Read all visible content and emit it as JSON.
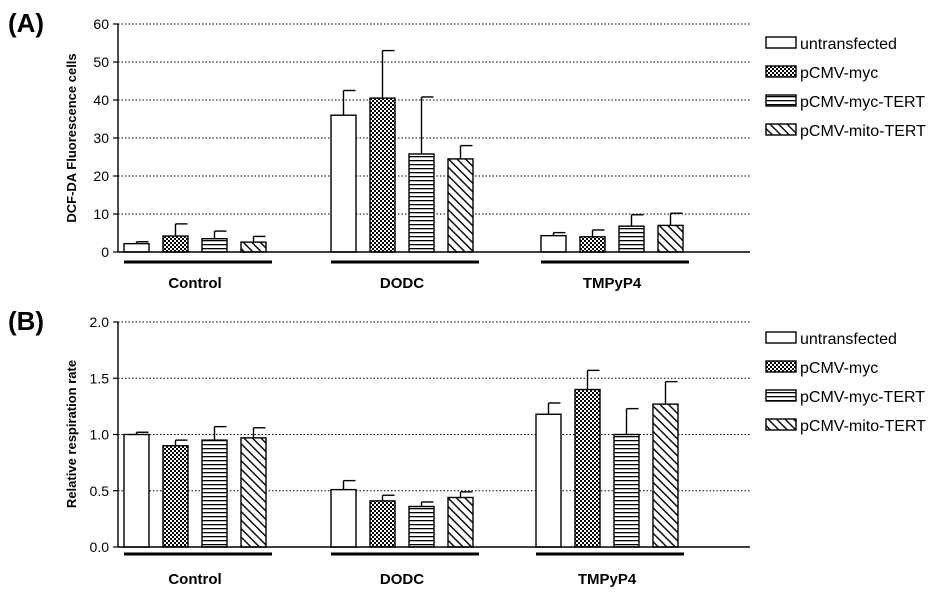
{
  "legend_colors": {
    "stroke": "#000000",
    "fill": "#ffffff"
  },
  "chart_data": [
    {
      "panel": "(A)",
      "type": "bar",
      "ylabel": "DCF-DA Fluorescence cells",
      "ylim": [
        0,
        60
      ],
      "yticks": [
        "0",
        "10",
        "20",
        "30",
        "40",
        "50",
        "60"
      ],
      "grid": "horizontal dotted",
      "legend_placement": "right",
      "categories": [
        "Control",
        "DODC",
        "TMPyP4"
      ],
      "series": [
        {
          "name": "untransfected",
          "pattern": "none",
          "values": [
            2.2,
            36,
            4.3
          ],
          "errors": [
            0.5,
            6.5,
            0.8
          ]
        },
        {
          "name": "pCMV-myc",
          "pattern": "dense-check",
          "values": [
            4.2,
            40.5,
            4.0
          ],
          "errors": [
            3.2,
            12.5,
            1.8
          ]
        },
        {
          "name": "pCMV-myc-TERT",
          "pattern": "horizontal-lines",
          "values": [
            3.5,
            25.8,
            6.8
          ],
          "errors": [
            2.0,
            15.0,
            3.0
          ]
        },
        {
          "name": "pCMV-mito-TERT",
          "pattern": "diagonal-lines",
          "values": [
            2.6,
            24.5,
            7.0
          ],
          "errors": [
            1.5,
            3.5,
            3.2
          ]
        }
      ]
    },
    {
      "panel": "(B)",
      "type": "bar",
      "ylabel": "Relative respiration rate",
      "ylim": [
        0,
        2.0
      ],
      "yticks": [
        "0.0",
        "0.5",
        "1.0",
        "1.5",
        "2.0"
      ],
      "grid": "horizontal dotted",
      "legend_placement": "right",
      "categories": [
        "Control",
        "DODC",
        "TMPyP4"
      ],
      "series": [
        {
          "name": "untransfected",
          "pattern": "none",
          "values": [
            1.0,
            0.51,
            1.18
          ],
          "errors": [
            0.02,
            0.08,
            0.1
          ]
        },
        {
          "name": "pCMV-myc",
          "pattern": "dense-check",
          "values": [
            0.9,
            0.41,
            1.4
          ],
          "errors": [
            0.05,
            0.05,
            0.17
          ]
        },
        {
          "name": "pCMV-myc-TERT",
          "pattern": "horizontal-lines",
          "values": [
            0.95,
            0.36,
            1.0
          ],
          "errors": [
            0.12,
            0.04,
            0.23
          ]
        },
        {
          "name": "pCMV-mito-TERT",
          "pattern": "diagonal-lines",
          "values": [
            0.97,
            0.44,
            1.27
          ],
          "errors": [
            0.09,
            0.05,
            0.2
          ]
        }
      ]
    }
  ]
}
